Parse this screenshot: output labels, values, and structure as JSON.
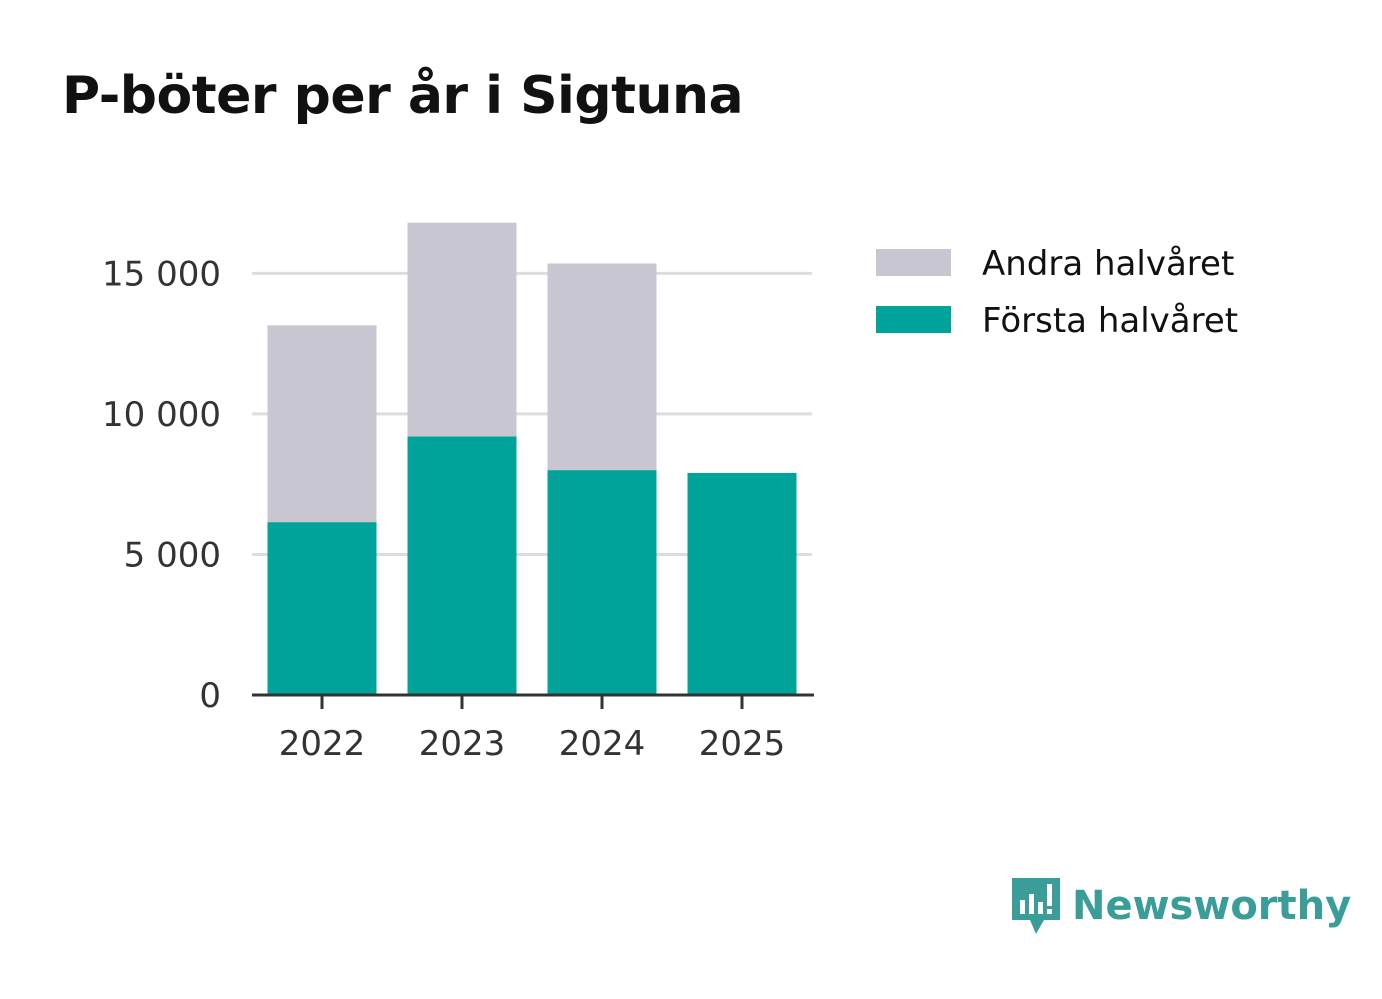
{
  "title": "P-böter per år i Sigtuna",
  "brand": {
    "name": "Newsworthy",
    "color": "#3a9d98",
    "icon": "chart-speech-bubble-icon"
  },
  "colors": {
    "first_half": "#00a39a",
    "second_half": "#c8c7d1",
    "grid": "#dddddd",
    "axis": "#333333"
  },
  "chart_data": {
    "type": "bar",
    "stacked": true,
    "title": "P-böter per år i Sigtuna",
    "xlabel": "",
    "ylabel": "",
    "categories": [
      "2022",
      "2023",
      "2024",
      "2025"
    ],
    "series": [
      {
        "name": "Första halvåret",
        "values": [
          6150,
          9200,
          8000,
          7900
        ]
      },
      {
        "name": "Andra halvåret",
        "values": [
          7000,
          7600,
          7350,
          0
        ]
      }
    ],
    "ylim": [
      0,
      18000
    ],
    "yticks": [
      0,
      5000,
      10000,
      15000
    ],
    "ytick_labels": [
      "0",
      "5 000",
      "10 000",
      "15 000"
    ],
    "grid": true,
    "legend": {
      "position": "top-right",
      "entries": [
        "Andra halvåret",
        "Första halvåret"
      ]
    }
  }
}
